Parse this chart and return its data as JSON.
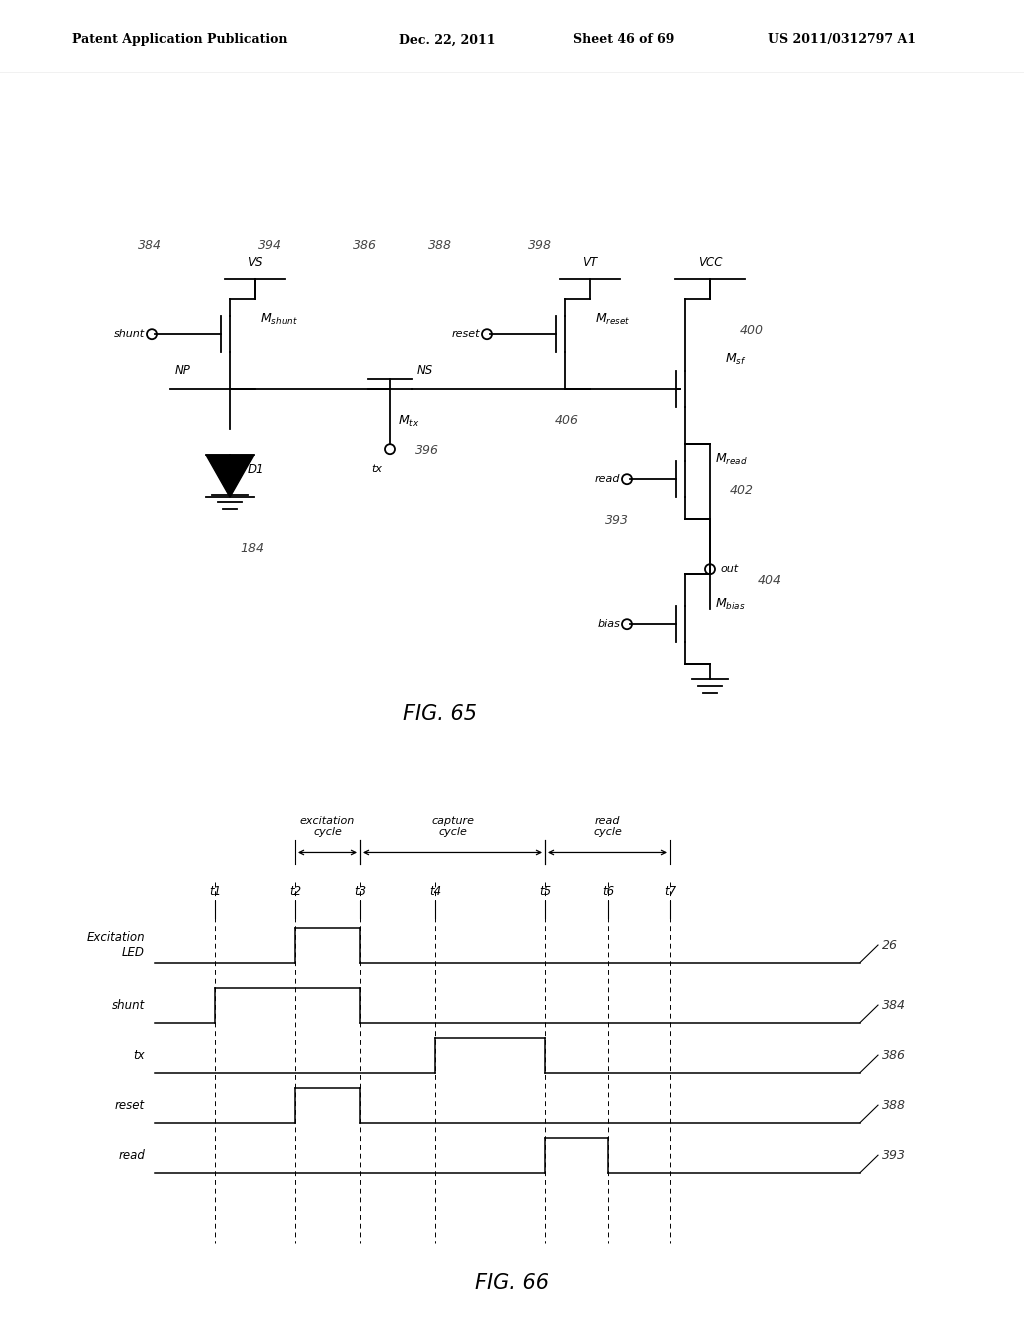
{
  "bg_color": "#ffffff",
  "header_text": "Patent Application Publication",
  "header_date": "Dec. 22, 2011",
  "header_sheet": "Sheet 46 of 69",
  "header_patent": "US 2011/0312797 A1",
  "fig65_label": "FIG. 65",
  "fig66_label": "FIG. 66",
  "timing_labels": [
    "Excitation\nLED",
    "shunt",
    "tx",
    "reset",
    "read"
  ],
  "timing_refs": [
    "26",
    "384",
    "386",
    "388",
    "393"
  ],
  "time_points": [
    "t1",
    "t2",
    "t3",
    "t4",
    "t5",
    "t6",
    "t7"
  ],
  "cycle_labels": [
    "excitation\ncycle",
    "capture\ncycle",
    "read\ncycle"
  ]
}
